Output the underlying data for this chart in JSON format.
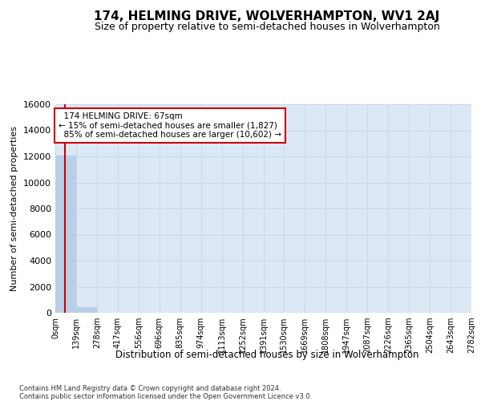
{
  "title": "174, HELMING DRIVE, WOLVERHAMPTON, WV1 2AJ",
  "subtitle": "Size of property relative to semi-detached houses in Wolverhampton",
  "xlabel": "Distribution of semi-detached houses by size in Wolverhampton",
  "ylabel": "Number of semi-detached properties",
  "bar_values": [
    12050,
    420,
    0,
    0,
    0,
    0,
    0,
    0,
    0,
    0,
    0,
    0,
    0,
    0,
    0,
    0,
    0,
    0,
    0,
    0
  ],
  "bin_edges": [
    0,
    139,
    278,
    417,
    556,
    696,
    835,
    974,
    1113,
    1252,
    1391,
    1530,
    1669,
    1808,
    1947,
    2087,
    2226,
    2365,
    2504,
    2643,
    2782
  ],
  "x_tick_labels": [
    "0sqm",
    "139sqm",
    "278sqm",
    "417sqm",
    "556sqm",
    "696sqm",
    "835sqm",
    "974sqm",
    "1113sqm",
    "1252sqm",
    "1391sqm",
    "1530sqm",
    "1669sqm",
    "1808sqm",
    "1947sqm",
    "2087sqm",
    "2226sqm",
    "2365sqm",
    "2504sqm",
    "2643sqm",
    "2782sqm"
  ],
  "bar_color": "#b8d0e8",
  "bar_edgecolor": "#b8d0e8",
  "background_color": "#dce9f5",
  "ylim": [
    0,
    16000
  ],
  "xlim": [
    0,
    2782
  ],
  "property_size": 67,
  "property_label": "174 HELMING DRIVE: 67sqm",
  "pct_smaller": 15,
  "pct_larger": 85,
  "count_smaller": 1827,
  "count_larger": 10602,
  "vline_color": "#cc0000",
  "annotation_box_color": "#cc0000",
  "title_fontsize": 11,
  "subtitle_fontsize": 9,
  "ylabel_fontsize": 8,
  "xlabel_fontsize": 8.5,
  "tick_fontsize": 7,
  "ann_fontsize": 7.5,
  "footer_fontsize": 6,
  "footer_text": "Contains HM Land Registry data © Crown copyright and database right 2024.\nContains public sector information licensed under the Open Government Licence v3.0.",
  "grid_color": "#c8d8ec"
}
